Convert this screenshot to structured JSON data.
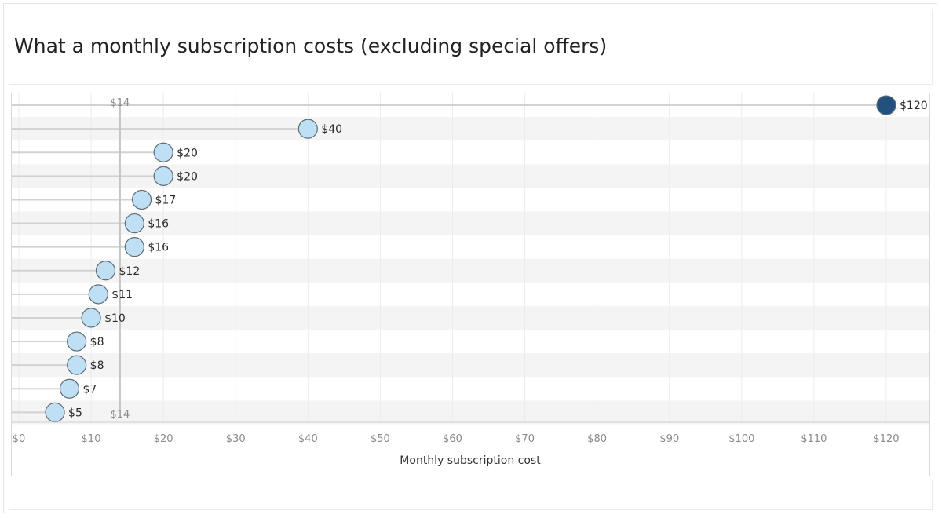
{
  "chart_data": {
    "type": "lollipop",
    "title": "What a monthly subscription costs (excluding special offers)",
    "xlabel": "Monthly subscription cost",
    "ylabel": "",
    "xlim": [
      0,
      125
    ],
    "tick_values": [
      0,
      10,
      20,
      30,
      40,
      50,
      60,
      70,
      80,
      90,
      100,
      110,
      120
    ],
    "tick_labels": [
      "$0",
      "$10",
      "$20",
      "$30",
      "$40",
      "$50",
      "$60",
      "$70",
      "$80",
      "$90",
      "$100",
      "$110",
      "$120"
    ],
    "values": [
      120,
      40,
      20,
      20,
      17,
      16,
      16,
      12,
      11,
      10,
      8,
      8,
      7,
      5
    ],
    "value_labels": [
      "$120",
      "$40",
      "$20",
      "$20",
      "$17",
      "$16",
      "$16",
      "$12",
      "$11",
      "$10",
      "$8",
      "$8",
      "$7",
      "$5"
    ],
    "highlight_index": 0,
    "reference_line": {
      "value": 14,
      "label_top": "$14",
      "label_bottom": "$14"
    },
    "grid": true,
    "alternating_row_bands": true,
    "colors": {
      "highlight_point": "#22507f",
      "point": "#bfe0f4",
      "point_stroke": "#5f6b75",
      "stem": "#d2d2d2",
      "reference_line": "#c4c4c4",
      "band": "#f4f4f4",
      "gridline": "#ececec"
    }
  }
}
